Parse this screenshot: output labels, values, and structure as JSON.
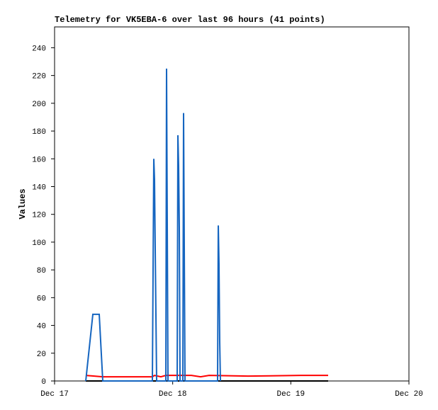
{
  "chart_data": {
    "type": "line",
    "title": "Telemetry for VK5EBA-6 over last 96 hours (41 points)",
    "y_label": "Values",
    "xlim": [
      0,
      3
    ],
    "xticks": [
      {
        "value": 0,
        "label": "Dec 17"
      },
      {
        "value": 1,
        "label": "Dec 18"
      },
      {
        "value": 2,
        "label": "Dec 19"
      },
      {
        "value": 3,
        "label": "Dec 20"
      }
    ],
    "ylim": [
      0,
      255
    ],
    "yticks": [
      0,
      20,
      40,
      60,
      80,
      100,
      120,
      140,
      160,
      180,
      200,
      220,
      240
    ],
    "series": [
      {
        "color": "#000000",
        "x": [
          0.264,
          2.316
        ],
        "values": [
          0,
          0
        ]
      },
      {
        "color": "#ff0000",
        "x": [
          0.264,
          0.408,
          0.828,
          0.846,
          0.9,
          0.942,
          1.158,
          1.236,
          1.308,
          1.638,
          2.088,
          2.316
        ],
        "values": [
          4,
          3,
          3,
          4,
          3,
          4,
          4,
          3,
          4,
          3.5,
          4,
          4
        ]
      },
      {
        "color": "#1565c0",
        "x": [
          0.264,
          0.324,
          0.378,
          0.408,
          0.828,
          0.834,
          0.84,
          0.846,
          0.852,
          0.864,
          0.942,
          0.948,
          0.954,
          0.96,
          1.038,
          1.044,
          1.05,
          1.056,
          1.062,
          1.086,
          1.092,
          1.098,
          1.104,
          1.38,
          1.386,
          1.392,
          1.398,
          1.404
        ],
        "values": [
          0,
          48,
          48,
          0,
          0,
          80,
          160,
          145,
          95,
          0,
          0,
          225,
          112,
          0,
          0,
          177,
          155,
          110,
          0,
          0,
          193,
          96,
          0,
          0,
          112,
          84,
          28,
          0
        ]
      }
    ]
  }
}
